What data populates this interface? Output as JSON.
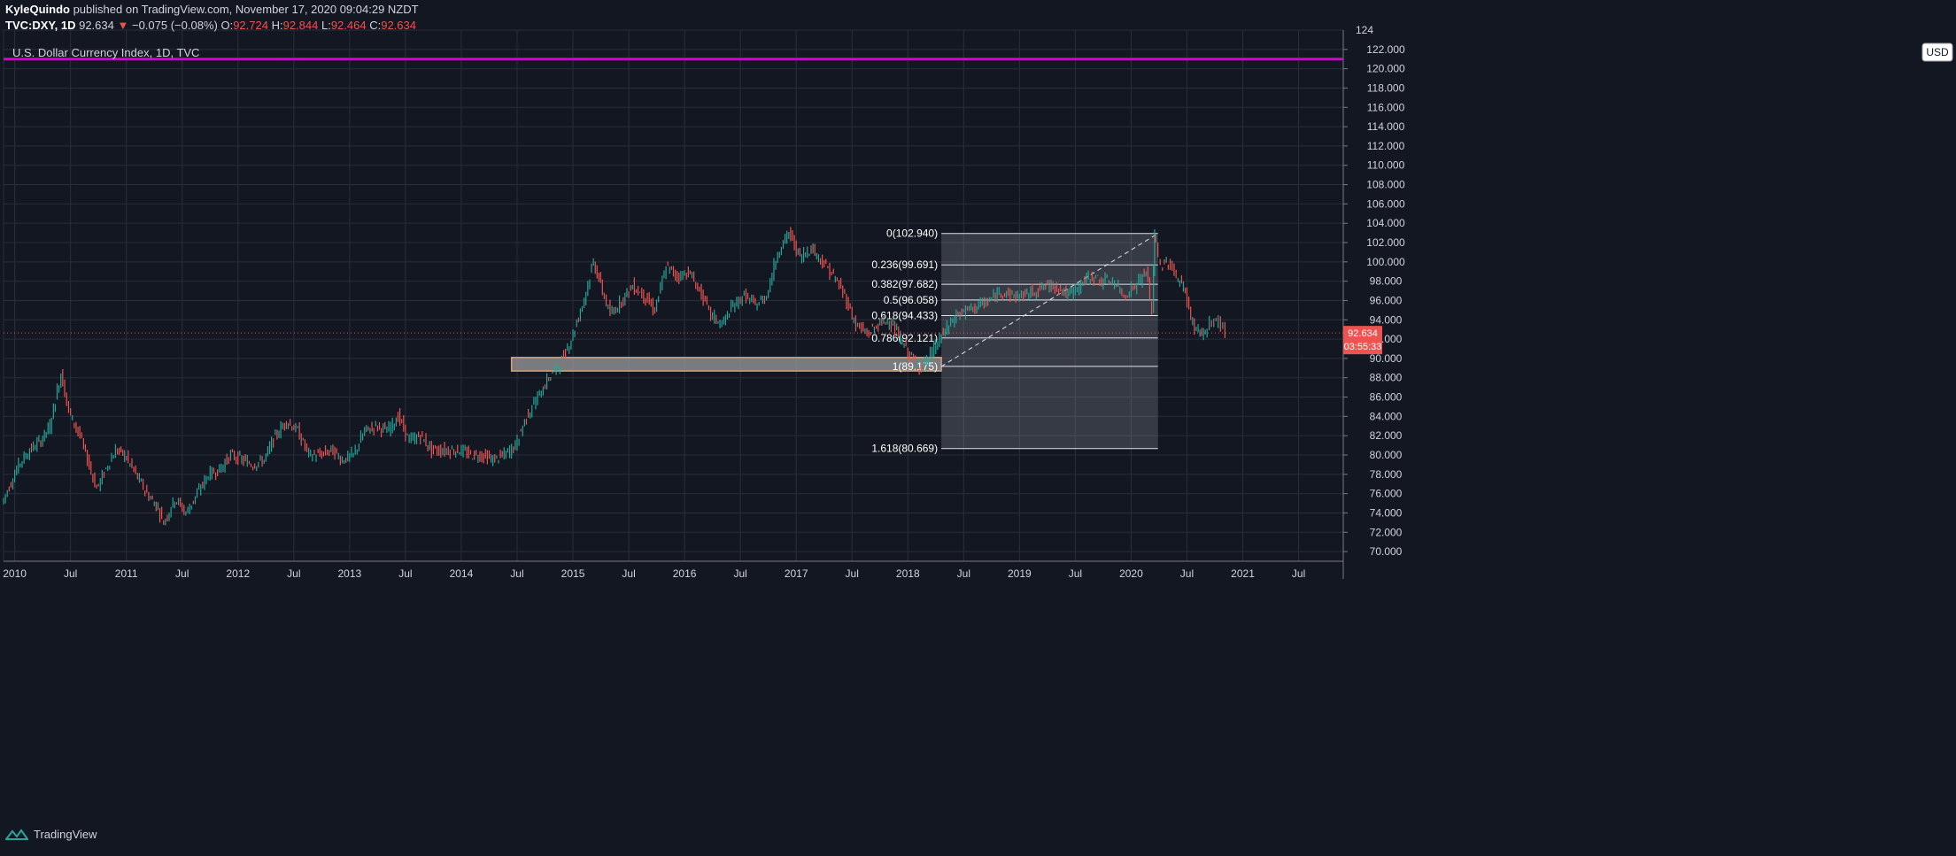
{
  "header": {
    "author": "KyleQuindo",
    "published": "published on TradingView.com, November 17, 2020 09:04:29 NZDT",
    "symbol": "TVC:DXY, 1D",
    "last": "92.634",
    "change_icon": "triangle-down",
    "change": "−0.075 (−0.08%)",
    "o_label": "O:",
    "o": "92.724",
    "h_label": "H:",
    "h": "92.844",
    "l_label": "L:",
    "l": "92.464",
    "c_label": "C:",
    "c": "92.634"
  },
  "footer": {
    "brand": "TradingView",
    "logo_icon": "tradingview-logo-icon"
  },
  "chart_data": {
    "type": "line",
    "title": "U.S. Dollar Currency Index, 1D, TVC",
    "currency": "USD",
    "ylim": [
      69,
      124
    ],
    "y_ticks": [
      70,
      72,
      74,
      76,
      78,
      80,
      82,
      84,
      86,
      88,
      90,
      92,
      94,
      96,
      98,
      100,
      102,
      104,
      106,
      108,
      110,
      112,
      114,
      116,
      118,
      120,
      122
    ],
    "y_tick_labels": [
      "70.000",
      "72.000",
      "74.000",
      "76.000",
      "78.000",
      "80.000",
      "82.000",
      "84.000",
      "86.000",
      "88.000",
      "90.000",
      "92.000",
      "94.000",
      "96.000",
      "98.000",
      "100.000",
      "102.000",
      "104.000",
      "106.000",
      "108.000",
      "110.000",
      "112.000",
      "114.000",
      "116.000",
      "118.000",
      "120.000",
      "122.000"
    ],
    "top_tick_label": "124",
    "x_ticks": [
      {
        "t": 2010.0,
        "label": "2010"
      },
      {
        "t": 2010.5,
        "label": "Jul"
      },
      {
        "t": 2011.0,
        "label": "2011"
      },
      {
        "t": 2011.5,
        "label": "Jul"
      },
      {
        "t": 2012.0,
        "label": "2012"
      },
      {
        "t": 2012.5,
        "label": "Jul"
      },
      {
        "t": 2013.0,
        "label": "2013"
      },
      {
        "t": 2013.5,
        "label": "Jul"
      },
      {
        "t": 2014.0,
        "label": "2014"
      },
      {
        "t": 2014.5,
        "label": "Jul"
      },
      {
        "t": 2015.0,
        "label": "2015"
      },
      {
        "t": 2015.5,
        "label": "Jul"
      },
      {
        "t": 2016.0,
        "label": "2016"
      },
      {
        "t": 2016.5,
        "label": "Jul"
      },
      {
        "t": 2017.0,
        "label": "2017"
      },
      {
        "t": 2017.5,
        "label": "Jul"
      },
      {
        "t": 2018.0,
        "label": "2018"
      },
      {
        "t": 2018.5,
        "label": "Jul"
      },
      {
        "t": 2019.0,
        "label": "2019"
      },
      {
        "t": 2019.5,
        "label": "Jul"
      },
      {
        "t": 2020.0,
        "label": "2020"
      },
      {
        "t": 2020.5,
        "label": "Jul"
      },
      {
        "t": 2021.0,
        "label": "2021"
      },
      {
        "t": 2021.5,
        "label": "Jul"
      }
    ],
    "xlim": [
      2009.9,
      2021.9
    ],
    "series": [
      {
        "points": [
          [
            2009.9,
            75.0
          ],
          [
            2010.05,
            79.0
          ],
          [
            2010.15,
            80.5
          ],
          [
            2010.25,
            81.5
          ],
          [
            2010.33,
            83.0
          ],
          [
            2010.43,
            88.5
          ],
          [
            2010.5,
            84.5
          ],
          [
            2010.6,
            82.0
          ],
          [
            2010.75,
            76.5
          ],
          [
            2010.85,
            79.0
          ],
          [
            2010.92,
            80.5
          ],
          [
            2011.0,
            80.0
          ],
          [
            2011.1,
            78.0
          ],
          [
            2011.2,
            76.0
          ],
          [
            2011.3,
            74.5
          ],
          [
            2011.35,
            73.0
          ],
          [
            2011.45,
            75.5
          ],
          [
            2011.55,
            74.0
          ],
          [
            2011.65,
            76.0
          ],
          [
            2011.75,
            78.0
          ],
          [
            2011.85,
            78.5
          ],
          [
            2011.95,
            80.0
          ],
          [
            2012.05,
            79.5
          ],
          [
            2012.15,
            79.0
          ],
          [
            2012.25,
            79.5
          ],
          [
            2012.35,
            82.0
          ],
          [
            2012.45,
            83.5
          ],
          [
            2012.55,
            82.5
          ],
          [
            2012.65,
            80.0
          ],
          [
            2012.75,
            80.0
          ],
          [
            2012.85,
            80.5
          ],
          [
            2012.95,
            79.5
          ],
          [
            2013.05,
            80.0
          ],
          [
            2013.15,
            82.5
          ],
          [
            2013.25,
            83.0
          ],
          [
            2013.35,
            82.5
          ],
          [
            2013.45,
            84.0
          ],
          [
            2013.55,
            81.5
          ],
          [
            2013.65,
            82.0
          ],
          [
            2013.75,
            80.5
          ],
          [
            2013.85,
            80.5
          ],
          [
            2014.0,
            80.5
          ],
          [
            2014.1,
            80.0
          ],
          [
            2014.2,
            80.0
          ],
          [
            2014.3,
            79.5
          ],
          [
            2014.4,
            80.0
          ],
          [
            2014.5,
            81.0
          ],
          [
            2014.6,
            84.0
          ],
          [
            2014.7,
            86.0
          ],
          [
            2014.8,
            88.0
          ],
          [
            2014.9,
            89.5
          ],
          [
            2015.0,
            92.0
          ],
          [
            2015.1,
            95.5
          ],
          [
            2015.2,
            100.0
          ],
          [
            2015.28,
            97.0
          ],
          [
            2015.35,
            94.5
          ],
          [
            2015.45,
            96.0
          ],
          [
            2015.55,
            97.5
          ],
          [
            2015.65,
            96.5
          ],
          [
            2015.75,
            95.0
          ],
          [
            2015.85,
            99.5
          ],
          [
            2015.95,
            98.5
          ],
          [
            2016.05,
            99.0
          ],
          [
            2016.15,
            97.0
          ],
          [
            2016.25,
            94.5
          ],
          [
            2016.35,
            93.5
          ],
          [
            2016.45,
            95.5
          ],
          [
            2016.55,
            96.5
          ],
          [
            2016.65,
            95.5
          ],
          [
            2016.75,
            96.5
          ],
          [
            2016.85,
            101.0
          ],
          [
            2016.95,
            103.0
          ],
          [
            2017.05,
            100.5
          ],
          [
            2017.15,
            101.5
          ],
          [
            2017.25,
            100.0
          ],
          [
            2017.35,
            98.5
          ],
          [
            2017.45,
            96.5
          ],
          [
            2017.55,
            93.5
          ],
          [
            2017.65,
            92.5
          ],
          [
            2017.75,
            93.5
          ],
          [
            2017.85,
            94.0
          ],
          [
            2017.95,
            92.0
          ],
          [
            2018.05,
            90.0
          ],
          [
            2018.12,
            89.2
          ],
          [
            2018.2,
            90.0
          ],
          [
            2018.3,
            92.0
          ],
          [
            2018.45,
            94.5
          ],
          [
            2018.55,
            95.0
          ],
          [
            2018.65,
            95.5
          ],
          [
            2018.75,
            96.0
          ],
          [
            2018.85,
            97.0
          ],
          [
            2018.95,
            96.5
          ],
          [
            2019.05,
            96.5
          ],
          [
            2019.15,
            97.0
          ],
          [
            2019.25,
            97.5
          ],
          [
            2019.35,
            97.5
          ],
          [
            2019.45,
            96.5
          ],
          [
            2019.55,
            97.5
          ],
          [
            2019.65,
            98.5
          ],
          [
            2019.75,
            98.0
          ],
          [
            2019.85,
            98.0
          ],
          [
            2019.95,
            96.5
          ],
          [
            2020.05,
            97.5
          ],
          [
            2020.15,
            99.0
          ],
          [
            2020.2,
            95.0
          ],
          [
            2020.22,
            102.9
          ],
          [
            2020.28,
            99.5
          ],
          [
            2020.35,
            100.0
          ],
          [
            2020.42,
            98.5
          ],
          [
            2020.5,
            97.0
          ],
          [
            2020.55,
            94.0
          ],
          [
            2020.6,
            93.0
          ],
          [
            2020.68,
            92.5
          ],
          [
            2020.72,
            93.5
          ],
          [
            2020.78,
            94.0
          ],
          [
            2020.82,
            93.5
          ],
          [
            2020.86,
            92.634
          ]
        ]
      }
    ],
    "resistance_line": {
      "y": 121.0,
      "color": "#d500d5"
    },
    "support_zone": {
      "x1": 2014.45,
      "x2": 2018.3,
      "y1": 88.7,
      "y2": 90.1
    },
    "fib": {
      "x1": 2018.3,
      "x2": 2020.24,
      "levels": [
        {
          "label": "0(102.940)",
          "y": 102.94
        },
        {
          "label": "0.236(99.691)",
          "y": 99.691
        },
        {
          "label": "0.382(97.682)",
          "y": 97.682
        },
        {
          "label": "0.5(96.058)",
          "y": 96.058
        },
        {
          "label": "0.618(94.433)",
          "y": 94.433
        },
        {
          "label": "0.786(92.121)",
          "y": 92.121
        },
        {
          "label": "1(89.175)",
          "y": 89.175
        },
        {
          "label": "1.618(80.669)",
          "y": 80.669
        }
      ]
    },
    "price_label": {
      "value": "92.634",
      "countdown": "03:55:33",
      "color": "#ef5350"
    },
    "colors": {
      "up": "#26a69a",
      "down": "#ef5350",
      "grid": "#2a2e39",
      "bg": "#131722"
    }
  }
}
